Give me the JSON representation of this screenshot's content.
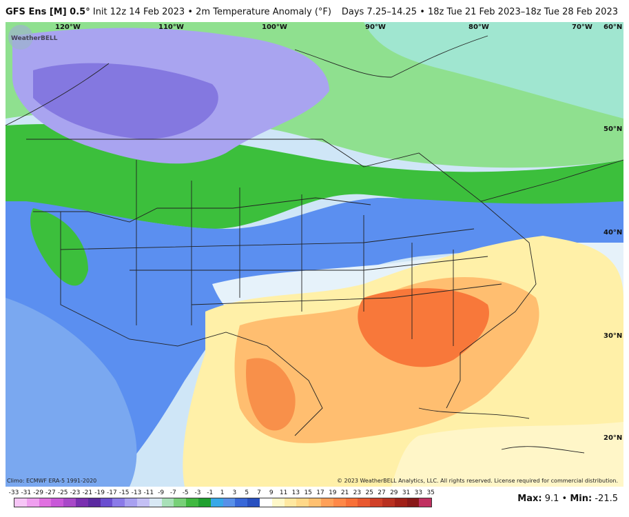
{
  "title": {
    "model": "GFS Ens [M] 0.5",
    "degree_symbol": "°",
    "init": "Init 12z 14 Feb 2023",
    "field": "2m Temperature Anomaly (°F)",
    "valid": "Days 7.25–14.25 • 18z Tue 21 Feb 2023–18z Tue 28 Feb 2023"
  },
  "grid_labels": {
    "lon_120": "120°W",
    "lon_110": "110°W",
    "lon_100": "100°W",
    "lon_90": "90°W",
    "lon_80": "80°W",
    "lon_70": "70°W",
    "lon_60": "60°N",
    "lat_50": "50°N",
    "lat_40": "40°N",
    "lat_30": "30°N",
    "lat_20": "20°N"
  },
  "logo_text": "WeatherBELL",
  "footer": {
    "climo": "Climo: ECMWF ERA-5 1991-2020",
    "copyright": "© 2023 WeatherBELL Analytics, LLC. All rights reserved. License required for commercial distribution."
  },
  "scale": {
    "labels": [
      "-33",
      "-31",
      "-29",
      "-27",
      "-25",
      "-23",
      "-21",
      "-19",
      "-17",
      "-15",
      "-13",
      "-11",
      "-9",
      "-7",
      "-5",
      "-3",
      "-1",
      "1",
      "3",
      "5",
      "7",
      "9",
      "11",
      "13",
      "15",
      "17",
      "19",
      "21",
      "23",
      "25",
      "27",
      "29",
      "31",
      "33",
      "35"
    ],
    "colors": [
      "#f7c6f7",
      "#ef9fef",
      "#e070e0",
      "#c858d8",
      "#a848c8",
      "#7a2fb0",
      "#5b2aa0",
      "#6a4ed0",
      "#8a7ae8",
      "#a8a0f0",
      "#c4c0f5",
      "#d8e8f4",
      "#a8e0b8",
      "#78d078",
      "#40b840",
      "#20a030",
      "#38a8e8",
      "#5890e8",
      "#3868d8",
      "#2850c0",
      "#ffffff",
      "#fff8c8",
      "#ffe8a0",
      "#ffd888",
      "#ffc070",
      "#ffa058",
      "#ff8848",
      "#f87038",
      "#e85830",
      "#d04028",
      "#b83020",
      "#a02018",
      "#881818",
      "#c03060"
    ],
    "max_label": "Max:",
    "max_value": "9.1",
    "separator": "•",
    "min_label": "Min:",
    "min_value": "-21.5"
  }
}
